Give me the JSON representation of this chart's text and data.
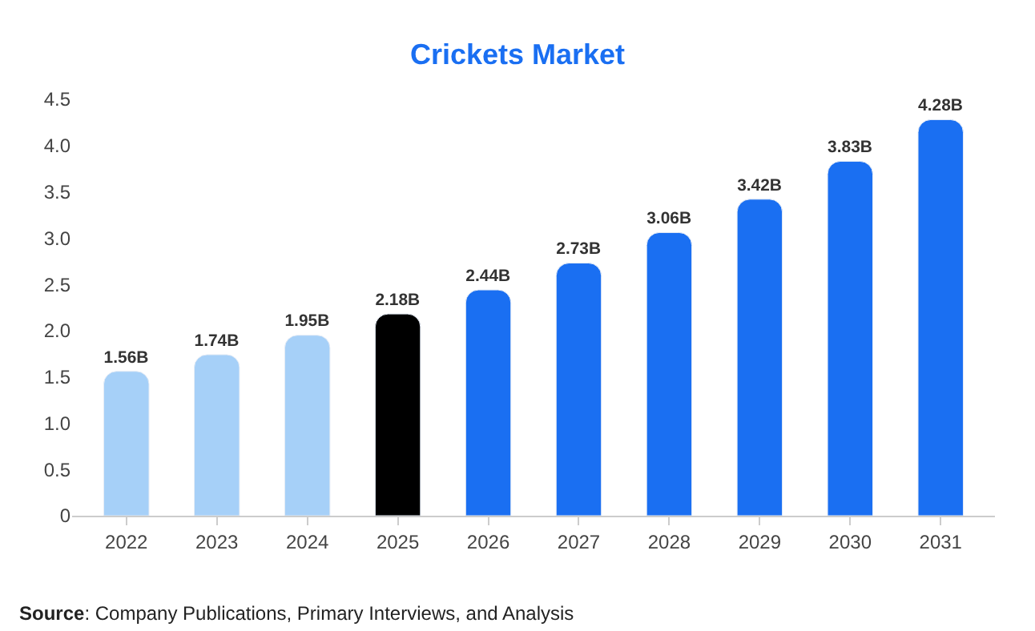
{
  "chart_data": {
    "type": "bar",
    "title": "Crickets Market",
    "categories": [
      "2022",
      "2023",
      "2024",
      "2025",
      "2026",
      "2027",
      "2028",
      "2029",
      "2030",
      "2031"
    ],
    "values": [
      1.56,
      1.74,
      1.95,
      2.18,
      2.44,
      2.73,
      3.06,
      3.42,
      3.83,
      4.28
    ],
    "value_labels": [
      "1.56B",
      "1.74B",
      "1.95B",
      "2.18B",
      "2.44B",
      "2.73B",
      "3.06B",
      "3.42B",
      "3.83B",
      "4.28B"
    ],
    "colors": [
      "#a6d0f8",
      "#a6d0f8",
      "#a6d0f8",
      "#000000",
      "#1a6ff2",
      "#1a6ff2",
      "#1a6ff2",
      "#1a6ff2",
      "#1a6ff2",
      "#1a6ff2"
    ],
    "ylim": [
      0,
      4.5
    ],
    "yticks": [
      0,
      0.5,
      {
        "value": 1,
        "label": "1.0"
      },
      1.5,
      {
        "value": 2,
        "label": "2.0"
      },
      2.5,
      {
        "value": 3,
        "label": "3.0"
      },
      3.5,
      {
        "value": 4,
        "label": "4.0"
      },
      4.5
    ],
    "annotations": [
      "Source: Company Publications, Primary Interviews, and Analysis"
    ]
  }
}
